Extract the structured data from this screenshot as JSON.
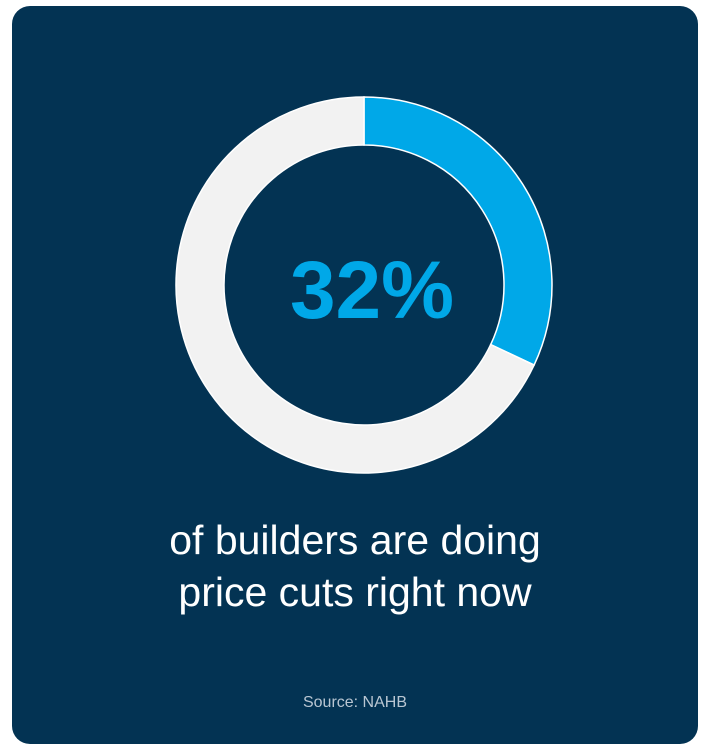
{
  "chart_data": {
    "type": "pie",
    "style": "donut",
    "center_label": "32%",
    "slices": [
      {
        "label": "",
        "value": 32,
        "color": "#00a8e8"
      },
      {
        "label": "",
        "value": 68,
        "color": "#f2f2f2"
      }
    ],
    "caption_lines": [
      "of builders are doing",
      "price cuts right now"
    ],
    "source": "Source: NAHB"
  },
  "colors": {
    "background": "#033353",
    "accent": "#00a8e8",
    "remainder": "#f2f2f2",
    "text": "#ffffff"
  }
}
